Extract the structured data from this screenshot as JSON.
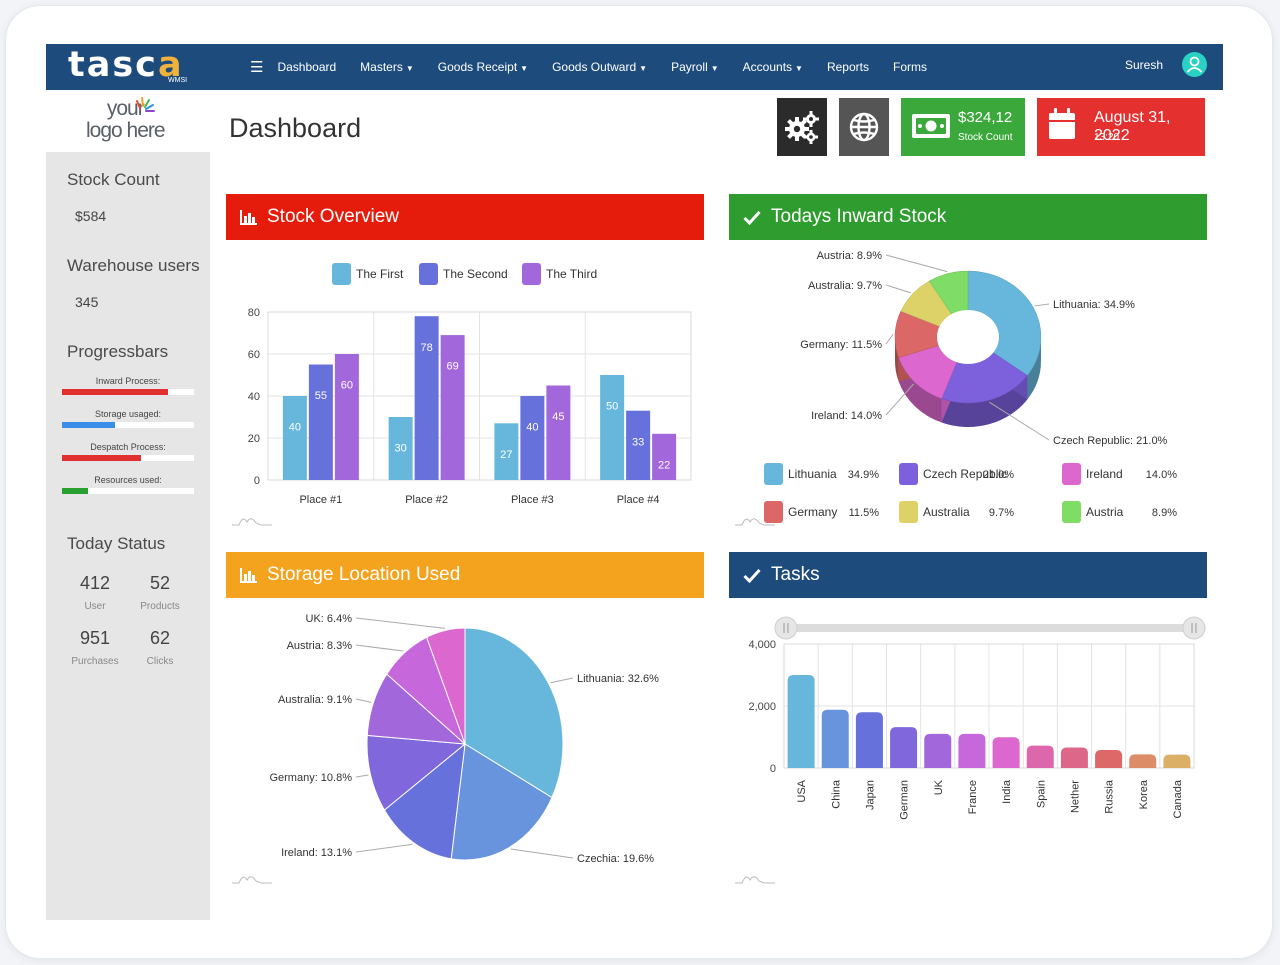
{
  "app": {
    "brand": "tasca",
    "brand_sub": "WMSI",
    "logo_line1": "your",
    "logo_line2": "logo here"
  },
  "nav": {
    "items": [
      {
        "label": "Dashboard",
        "caret": false
      },
      {
        "label": "Masters",
        "caret": true
      },
      {
        "label": "Goods Receipt",
        "caret": true
      },
      {
        "label": "Goods Outward",
        "caret": true
      },
      {
        "label": "Payroll",
        "caret": true
      },
      {
        "label": "Accounts",
        "caret": true
      },
      {
        "label": "Reports",
        "caret": false
      },
      {
        "label": "Forms",
        "caret": false
      }
    ],
    "user": "Suresh"
  },
  "sidebar": {
    "stock_count": {
      "label": "Stock Count",
      "value": "$584"
    },
    "warehouse_users": {
      "label": "Warehouse users",
      "value": "345"
    },
    "progress_title": "Progressbars",
    "progress": [
      {
        "label": "Inward Process:",
        "value": 0.8,
        "color": "#e03030"
      },
      {
        "label": "Storage usaged:",
        "value": 0.4,
        "color": "#3a8ee8"
      },
      {
        "label": "Despatch Process:",
        "value": 0.6,
        "color": "#e03030"
      },
      {
        "label": "Resources used:",
        "value": 0.2,
        "color": "#28a030"
      }
    ],
    "today_status_title": "Today Status",
    "status": [
      {
        "value": "412",
        "label": "User"
      },
      {
        "value": "52",
        "label": "Products"
      },
      {
        "value": "951",
        "label": "Purchases"
      },
      {
        "value": "62",
        "label": "Clicks"
      }
    ]
  },
  "page": {
    "title": "Dashboard"
  },
  "tiles": {
    "settings_icon": "gears-icon",
    "globe_icon": "globe-icon",
    "stock": {
      "value": "$324,12",
      "label": "Stock Count",
      "color": "#3aa83a"
    },
    "date": {
      "value": "August 31, 2022",
      "time": "13:20",
      "color": "#e53030"
    }
  },
  "panels": {
    "stock_overview": {
      "title": "Stock Overview",
      "color": "#e51c0c"
    },
    "inward_stock": {
      "title": "Todays Inward Stock",
      "color": "#2f9c2f"
    },
    "storage_location": {
      "title": "Storage Location Used",
      "color": "#f4a31f"
    },
    "tasks": {
      "title": "Tasks",
      "color": "#1d4c7c"
    }
  },
  "chart_data": [
    {
      "id": "stock_overview",
      "type": "bar",
      "categories": [
        "Place #1",
        "Place #2",
        "Place #3",
        "Place #4"
      ],
      "series": [
        {
          "name": "The First",
          "values": [
            40,
            30,
            27,
            50
          ],
          "color": "#67b7dc"
        },
        {
          "name": "The Second",
          "values": [
            55,
            78,
            40,
            33
          ],
          "color": "#6771dc"
        },
        {
          "name": "The Third",
          "values": [
            60,
            69,
            45,
            22
          ],
          "color": "#a367dc"
        }
      ],
      "ylim": [
        0,
        80
      ],
      "yticks": [
        "0",
        "20",
        "40",
        "60",
        "80"
      ],
      "grid": true,
      "legend_position": "top"
    },
    {
      "id": "inward_stock",
      "type": "pie",
      "style": "3d-donut",
      "slices": [
        {
          "name": "Lithuania",
          "value": 34.9,
          "color": "#67b7dc"
        },
        {
          "name": "Czech Republic",
          "value": 21.0,
          "color": "#7d60dc"
        },
        {
          "name": "Ireland",
          "value": 14.0,
          "color": "#dc67ce"
        },
        {
          "name": "Germany",
          "value": 11.5,
          "color": "#dc6767"
        },
        {
          "name": "Australia",
          "value": 9.7,
          "color": "#dcd267"
        },
        {
          "name": "Austria",
          "value": 8.9,
          "color": "#7fdc67"
        }
      ],
      "labels": [
        {
          "text": "Lithuania: 34.9%"
        },
        {
          "text": "Czech Republic: 21.0%"
        },
        {
          "text": "Ireland: 14.0%"
        },
        {
          "text": "Germany: 11.5%"
        },
        {
          "text": "Australia: 9.7%"
        },
        {
          "text": "Austria: 8.9%"
        }
      ],
      "legend": [
        {
          "name": "Lithuania",
          "value": "34.9%"
        },
        {
          "name": "Czech Republic",
          "value": "21.0%"
        },
        {
          "name": "Ireland",
          "value": "14.0%"
        },
        {
          "name": "Germany",
          "value": "11.5%"
        },
        {
          "name": "Australia",
          "value": "9.7%"
        },
        {
          "name": "Austria",
          "value": "8.9%"
        }
      ],
      "legend_position": "bottom"
    },
    {
      "id": "storage_location",
      "type": "pie",
      "slices": [
        {
          "name": "Lithuania",
          "value": 32.6,
          "color": "#67b7dc"
        },
        {
          "name": "Czechia",
          "value": 19.6,
          "color": "#6794dc"
        },
        {
          "name": "Ireland",
          "value": 13.1,
          "color": "#6771dc"
        },
        {
          "name": "Germany",
          "value": 10.8,
          "color": "#8067dc"
        },
        {
          "name": "Australia",
          "value": 9.1,
          "color": "#a367dc"
        },
        {
          "name": "Austria",
          "value": 8.3,
          "color": "#c767dc"
        },
        {
          "name": "UK",
          "value": 6.4,
          "color": "#dc67ce"
        }
      ],
      "labels": [
        {
          "text": "Lithuania: 32.6%"
        },
        {
          "text": "Czechia: 19.6%"
        },
        {
          "text": "Ireland: 13.1%"
        },
        {
          "text": "Germany: 10.8%"
        },
        {
          "text": "Australia: 9.1%"
        },
        {
          "text": "Austria: 8.3%"
        },
        {
          "text": "UK: 6.4%"
        }
      ]
    },
    {
      "id": "tasks",
      "type": "bar",
      "categories": [
        "USA",
        "China",
        "Japan",
        "German",
        "UK",
        "France",
        "India",
        "Spain",
        "Nether",
        "Russia",
        "Korea",
        "Canada"
      ],
      "values": [
        3000,
        1880,
        1800,
        1320,
        1100,
        1100,
        990,
        720,
        660,
        580,
        440,
        430
      ],
      "colors": [
        "#67b7dc",
        "#6794dc",
        "#6771dc",
        "#8067dc",
        "#a367dc",
        "#c767dc",
        "#dc67ce",
        "#dc67ab",
        "#dc6788",
        "#dc6967",
        "#dc8c67",
        "#dcaf67"
      ],
      "ylim": [
        0,
        4000
      ],
      "yticks": [
        "0",
        "2,000",
        "4,000"
      ],
      "grid": true,
      "scrollbar": true
    }
  ]
}
